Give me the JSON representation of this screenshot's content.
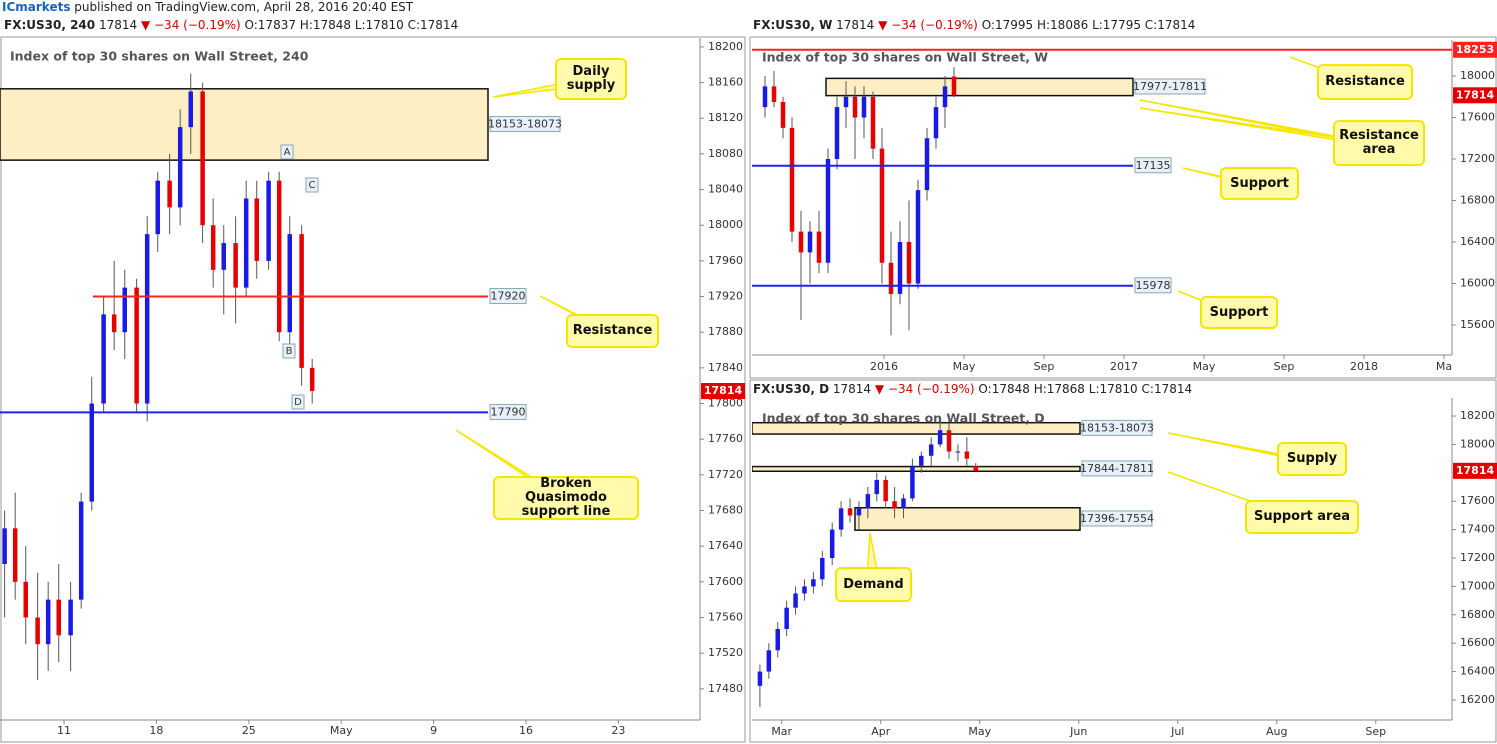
{
  "header": {
    "brand": "ICmarkets",
    "text": "published on TradingView.com, April 28, 2016 20:40 EST"
  },
  "chart_data": [
    {
      "type": "candlestick",
      "symbol": "FX:US30, 240",
      "price": 17814,
      "change": "−34 (−0.19%)",
      "ohlc": [
        "O:17837",
        "H:17848",
        "L:17810",
        "C:17814"
      ],
      "title": "Index of top 30 shares on Wall Street, 240",
      "up_color": "#1a1ae6",
      "down_color": "#e60000",
      "x": [
        6.5,
        7.3,
        8.1,
        9,
        9.8,
        10.6,
        11.5,
        12.3,
        13.1,
        14,
        14.8,
        15.6,
        16.5,
        17.3,
        18.1,
        19,
        19.8,
        20.6,
        21.5,
        22.3,
        23.1,
        24,
        24.8,
        25.6,
        26.5,
        27.3,
        28.1,
        29,
        29.8
      ],
      "open": [
        17620,
        17660,
        17600,
        17560,
        17530,
        17580,
        17540,
        17580,
        17690,
        17800,
        17900,
        17880,
        17930,
        17800,
        17990,
        18050,
        18020,
        18110,
        18150,
        18000,
        17950,
        17980,
        17930,
        18030,
        17960,
        18050,
        17880,
        17990,
        17840
      ],
      "high": [
        17680,
        17700,
        17640,
        17610,
        17600,
        17620,
        17600,
        17700,
        17830,
        17920,
        17960,
        17950,
        17940,
        18010,
        18060,
        18080,
        18130,
        18170,
        18160,
        18030,
        18000,
        18010,
        18050,
        18050,
        18060,
        18060,
        18010,
        18000,
        17850
      ],
      "low": [
        17560,
        17580,
        17530,
        17490,
        17500,
        17510,
        17500,
        17570,
        17680,
        17790,
        17860,
        17850,
        17790,
        17780,
        17970,
        17990,
        18000,
        18080,
        17980,
        17930,
        17900,
        17890,
        17920,
        17940,
        17950,
        17870,
        17860,
        17820,
        17800
      ],
      "close": [
        17660,
        17600,
        17560,
        17530,
        17580,
        17540,
        17580,
        17690,
        17800,
        17900,
        17880,
        17930,
        17800,
        17990,
        18050,
        18020,
        18110,
        18150,
        18000,
        17950,
        17980,
        17930,
        18030,
        17960,
        18050,
        17880,
        17990,
        17840,
        17814
      ],
      "xlim": [
        6.15,
        59.18
      ],
      "xticks": [
        11,
        18,
        25,
        {
          "value": 32,
          "label": "May"
        },
        {
          "value": 39,
          "label": "9"
        },
        {
          "value": 46,
          "label": "16"
        },
        {
          "value": 53,
          "label": "23"
        }
      ],
      "ylim": [
        17445,
        18210
      ],
      "yticks": [
        17480,
        17520,
        17560,
        17600,
        17640,
        17680,
        17720,
        17760,
        17800,
        17840,
        17880,
        17920,
        17960,
        18000,
        18040,
        18080,
        18120,
        18160,
        18200
      ],
      "zones": [
        {
          "top": 18153,
          "bottom": 18073,
          "label": "18153-18073"
        }
      ],
      "levels": [
        {
          "value": 17920,
          "label": "17920",
          "color": "#ff2020"
        },
        {
          "value": 17790,
          "label": "17790",
          "color": "#2020ff"
        }
      ],
      "markers": [
        "A",
        "B",
        "C",
        "D"
      ],
      "callouts": [
        "Daily supply",
        "Resistance",
        "Broken Quasimodo support line"
      ]
    },
    {
      "type": "candlestick",
      "symbol": "FX:US30, W",
      "price": 17814,
      "change": "−34 (−0.19%)",
      "ohlc": [
        "O:17995",
        "H:18086",
        "L:17795",
        "C:17814"
      ],
      "title": "Index of top 30 shares on Wall Street, W",
      "up_color": "#1a1ae6",
      "down_color": "#e60000",
      "x": [
        -5.95,
        -5.5,
        -5.05,
        -4.6,
        -4.15,
        -3.7,
        -3.25,
        -2.8,
        -2.35,
        -1.9,
        -1.45,
        -1,
        -0.55,
        -0.1,
        0.35,
        0.8,
        1.25,
        1.7,
        2.15,
        2.6,
        3.05,
        3.5
      ],
      "open": [
        17700,
        17900,
        17750,
        17500,
        16500,
        16300,
        16500,
        16200,
        17200,
        17700,
        17800,
        17600,
        17800,
        17300,
        16200,
        15900,
        16400,
        16000,
        16900,
        17400,
        17700,
        17995
      ],
      "high": [
        18000,
        18050,
        17800,
        17600,
        16700,
        16600,
        16700,
        17300,
        17800,
        17950,
        17900,
        17900,
        17850,
        17500,
        16500,
        16600,
        16800,
        17000,
        17500,
        17800,
        18000,
        18086
      ],
      "low": [
        17600,
        17700,
        17400,
        16400,
        15650,
        16000,
        16100,
        16100,
        17100,
        17500,
        17200,
        17400,
        17200,
        16000,
        15500,
        15800,
        15550,
        15950,
        16800,
        17300,
        17500,
        17795
      ],
      "close": [
        17900,
        17750,
        17500,
        16500,
        16300,
        16500,
        16200,
        17200,
        17700,
        17800,
        17600,
        17800,
        17300,
        16200,
        15900,
        16400,
        16000,
        16900,
        17400,
        17700,
        17900,
        17814
      ],
      "xlim": [
        -6.6,
        28.4
      ],
      "xticks": [
        {
          "value": 0,
          "label": "2016"
        },
        {
          "value": 4,
          "label": "May"
        },
        {
          "value": 8,
          "label": "Sep"
        },
        {
          "value": 12,
          "label": "2017"
        },
        {
          "value": 16,
          "label": "May"
        },
        {
          "value": 20,
          "label": "Sep"
        },
        {
          "value": 24,
          "label": "2018"
        },
        {
          "value": 28,
          "label": "Ma"
        }
      ],
      "ylim": [
        15311,
        18347
      ],
      "yticks": [
        15600,
        16000,
        16400,
        16800,
        17200,
        17600,
        18000
      ],
      "zones": [
        {
          "top": 17977,
          "bottom": 17811,
          "label": "17977-17811"
        }
      ],
      "levels": [
        {
          "value": 18253,
          "label": "18253",
          "color": "#ff2020",
          "label_at": "axis"
        },
        {
          "value": 17135,
          "label": "17135",
          "color": "#2020ff"
        },
        {
          "value": 15978,
          "label": "15978",
          "color": "#2020ff"
        }
      ],
      "callouts": [
        "Resistance",
        "Resistance area",
        "Support",
        "Support"
      ]
    },
    {
      "type": "candlestick",
      "symbol": "FX:US30, D",
      "price": 17814,
      "change": "−34 (−0.19%)",
      "ohlc": [
        "O:17848",
        "H:17868",
        "L:17810",
        "C:17814"
      ],
      "title": "Index of top 30 shares on Wall Street, D",
      "up_color": "#1a1ae6",
      "down_color": "#e60000",
      "x": [
        2.78,
        2.87,
        2.96,
        3.05,
        3.14,
        3.23,
        3.32,
        3.41,
        3.51,
        3.6,
        3.69,
        3.78,
        3.87,
        3.96,
        4.05,
        4.14,
        4.23,
        4.32,
        4.41,
        4.51,
        4.6,
        4.69,
        4.78,
        4.87,
        4.96
      ],
      "open": [
        16300,
        16400,
        16550,
        16700,
        16850,
        16950,
        17000,
        17050,
        17200,
        17400,
        17550,
        17500,
        17550,
        17650,
        17750,
        17600,
        17550,
        17620,
        17850,
        17920,
        18000,
        18100,
        17950,
        17950,
        17848
      ],
      "high": [
        16450,
        16600,
        16750,
        16900,
        17000,
        17050,
        17100,
        17250,
        17450,
        17600,
        17620,
        17600,
        17700,
        17800,
        17780,
        17700,
        17650,
        17900,
        17950,
        18050,
        18160,
        18150,
        18000,
        18050,
        17868
      ],
      "low": [
        16150,
        16350,
        16500,
        16650,
        16800,
        16900,
        16950,
        17000,
        17150,
        17350,
        17450,
        17400,
        17480,
        17600,
        17550,
        17480,
        17480,
        17600,
        17800,
        17850,
        17980,
        17900,
        17880,
        17850,
        17810
      ],
      "close": [
        16400,
        16550,
        16700,
        16850,
        16950,
        17000,
        17050,
        17200,
        17400,
        17550,
        17500,
        17550,
        17650,
        17750,
        17600,
        17550,
        17620,
        17850,
        17920,
        18000,
        18100,
        17950,
        17950,
        17900,
        17814
      ],
      "xlim": [
        2.7,
        9.77
      ],
      "xticks": [
        {
          "value": 3,
          "label": "Mar"
        },
        {
          "value": 4,
          "label": "Apr"
        },
        {
          "value": 5,
          "label": "May"
        },
        {
          "value": 6,
          "label": "Jun"
        },
        {
          "value": 7,
          "label": "Jul"
        },
        {
          "value": 8,
          "label": "Aug"
        },
        {
          "value": 9,
          "label": "Sep"
        }
      ],
      "ylim": [
        16059,
        18327
      ],
      "yticks": [
        16200,
        16400,
        16600,
        16800,
        17000,
        17200,
        17400,
        17600,
        18000,
        18200
      ],
      "zones": [
        {
          "top": 18153,
          "bottom": 18073,
          "label": "18153-18073"
        },
        {
          "top": 17844,
          "bottom": 17811,
          "label": "17844-17811"
        },
        {
          "top": 17554,
          "bottom": 17396,
          "label": "17396-17554"
        }
      ],
      "levels": [],
      "callouts": [
        "Supply",
        "Support area",
        "Demand"
      ]
    }
  ]
}
